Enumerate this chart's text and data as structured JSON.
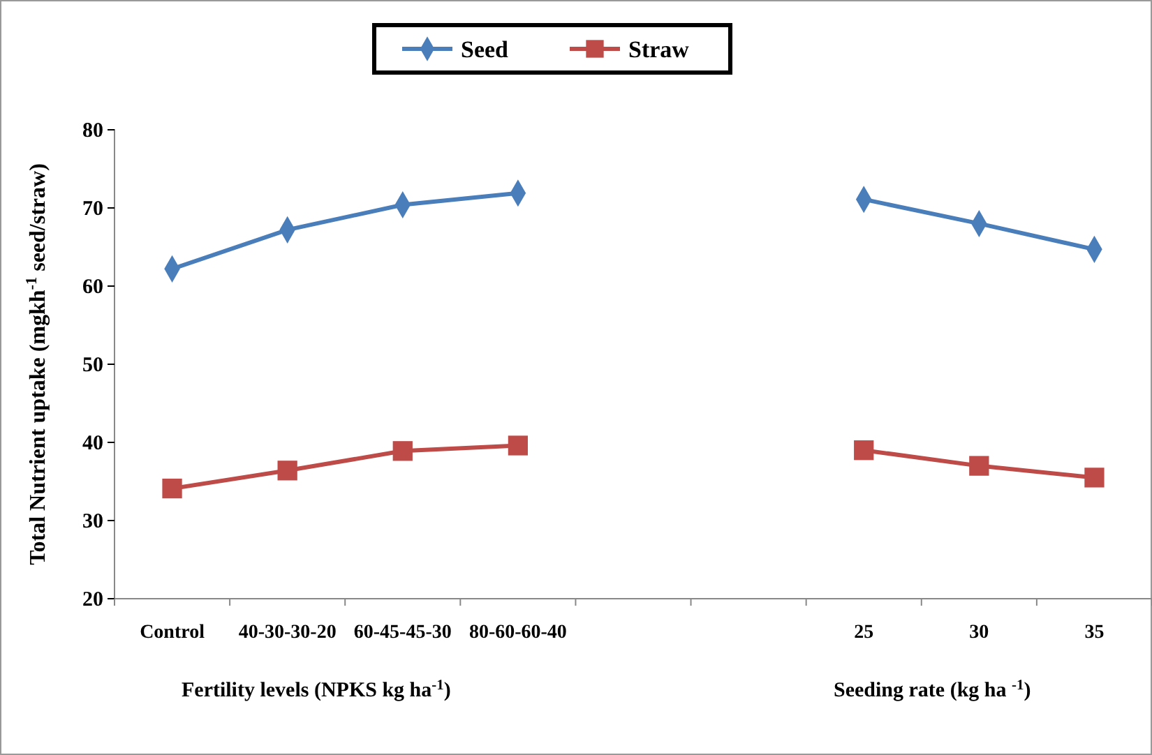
{
  "chart_data": {
    "type": "line",
    "ylabel": "Total Nutrient uptake (mgkh$^{-1}$ seed/straw)",
    "categories": [
      "Control",
      "40-30-30-20",
      "60-45-45-30",
      "80-60-60-40",
      null,
      null,
      "25",
      "30",
      "35"
    ],
    "ylim": [
      20,
      80
    ],
    "yticks": [
      20,
      30,
      40,
      50,
      60,
      70,
      80
    ],
    "grid": false,
    "legend": "top",
    "series": [
      {
        "name": "Seed",
        "color": "#4a7ebb",
        "marker": "diamond",
        "values": [
          62.2,
          67.2,
          70.4,
          71.9,
          null,
          null,
          71.1,
          68.0,
          64.7
        ]
      },
      {
        "name": "Straw",
        "color": "#be4b48",
        "marker": "square",
        "values": [
          34.1,
          36.4,
          38.9,
          39.6,
          null,
          null,
          39.0,
          37.0,
          35.5
        ]
      }
    ],
    "annotations": [
      "Fertility levels (NPKS kg ha$^{-1}$)",
      "Seeding rate (kg ha $^{-1}$)"
    ]
  }
}
